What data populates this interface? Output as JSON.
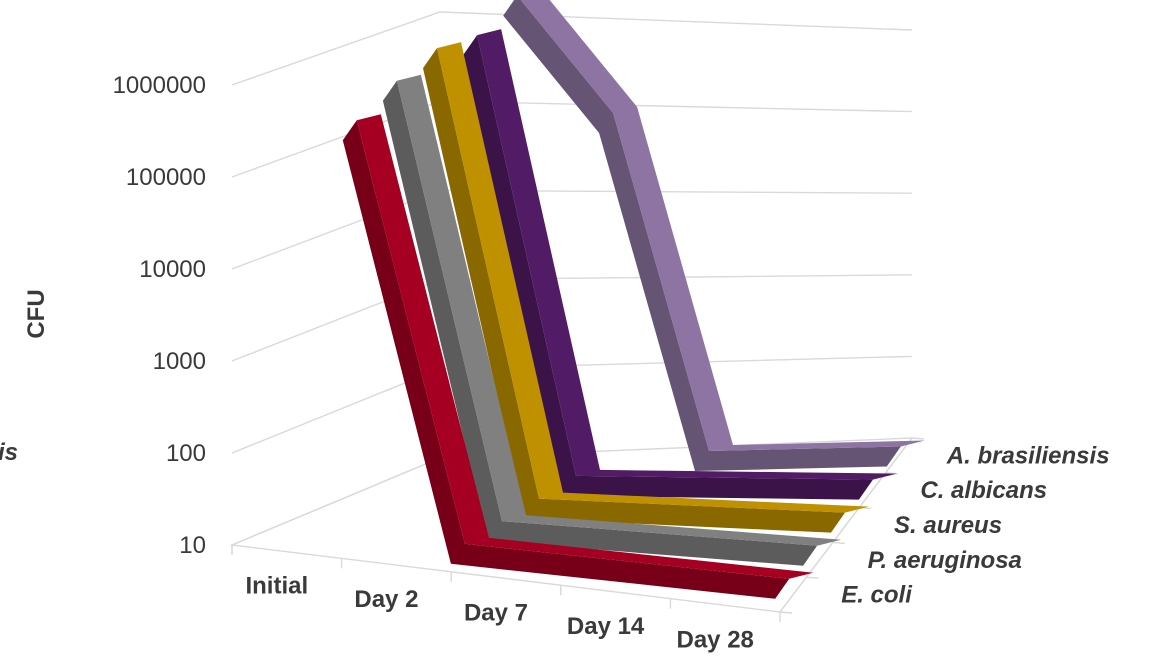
{
  "chart_data": {
    "type": "line",
    "style": "3d-ribbon",
    "ylabel": "CFU",
    "yscale": "log",
    "ylim": [
      10,
      1000000
    ],
    "yticks": [
      "10",
      "100",
      "1000",
      "10000",
      "100000",
      "1000000"
    ],
    "categories": [
      "Initial",
      "Day 2",
      "Day 7",
      "Day 14",
      "Day 28"
    ],
    "grid": true,
    "series": [
      {
        "name": "E. coli",
        "color": "#a50021",
        "values": [
          300000,
          10,
          10,
          10,
          10
        ]
      },
      {
        "name": "P. aeruginosa",
        "color": "#808080",
        "values": [
          500000,
          10,
          10,
          10,
          10
        ]
      },
      {
        "name": "S. aureus",
        "color": "#bf9000",
        "values": [
          700000,
          10,
          10,
          10,
          10
        ]
      },
      {
        "name": "C. albicans",
        "color": "#521b66",
        "values": [
          600000,
          10,
          10,
          10,
          10
        ]
      },
      {
        "name": "A. brasiliensis",
        "color": "#8e74a3",
        "values": [
          1000000,
          50000,
          10,
          10,
          10
        ]
      }
    ],
    "clipped_label_fragment": "is"
  }
}
